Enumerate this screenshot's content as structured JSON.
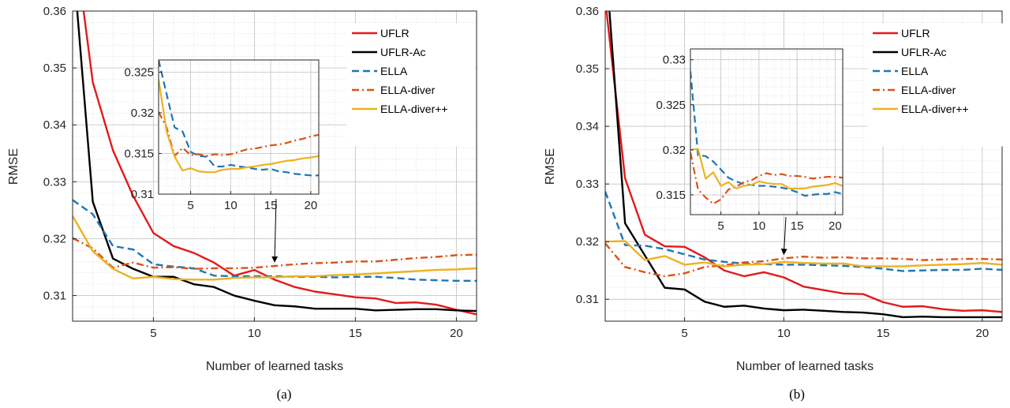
{
  "chart_data": [
    {
      "type": "line",
      "caption": "(a)",
      "xlabel": "Number of learned tasks",
      "ylabel": "RMSE",
      "xlim": [
        1,
        21
      ],
      "ylim": [
        0.3055,
        0.36
      ],
      "xticks": [
        5,
        10,
        15,
        20
      ],
      "yticks": [
        0.31,
        0.32,
        0.33,
        0.34,
        0.35,
        0.36
      ],
      "ytick_labels": [
        "0.31",
        "0.32",
        "0.33",
        "0.34",
        "0.35",
        "0.36"
      ],
      "grid": true,
      "legend_position": "top-right",
      "x": [
        1,
        2,
        3,
        4,
        5,
        6,
        7,
        8,
        9,
        10,
        11,
        12,
        13,
        14,
        15,
        16,
        17,
        18,
        19,
        20,
        21
      ],
      "series": [
        {
          "name": "UFLR",
          "color": "#e31a1c",
          "style": "solid",
          "values": [
            0.375,
            0.3475,
            0.3355,
            0.3275,
            0.321,
            0.3187,
            0.3175,
            0.3158,
            0.3135,
            0.3145,
            0.3128,
            0.3115,
            0.3107,
            0.3102,
            0.3097,
            0.3095,
            0.3087,
            0.3088,
            0.3084,
            0.3075,
            0.3067
          ]
        },
        {
          "name": "UFLR-Ac",
          "color": "#000000",
          "style": "solid",
          "values": [
            0.37,
            0.3265,
            0.3165,
            0.3147,
            0.3133,
            0.3133,
            0.312,
            0.3115,
            0.31,
            0.3091,
            0.3083,
            0.3081,
            0.3077,
            0.3077,
            0.3077,
            0.3074,
            0.3075,
            0.3076,
            0.3076,
            0.3074,
            0.3073
          ]
        },
        {
          "name": "ELLA",
          "color": "#1f77b4",
          "style": "dashed",
          "values": [
            0.3268,
            0.3243,
            0.3187,
            0.3181,
            0.3155,
            0.3151,
            0.3148,
            0.3135,
            0.3134,
            0.3134,
            0.3134,
            0.3133,
            0.3133,
            0.3132,
            0.3133,
            0.3133,
            0.3131,
            0.3128,
            0.3127,
            0.3126,
            0.3126
          ]
        },
        {
          "name": "ELLA-diver",
          "color": "#d95319",
          "style": "dashdot",
          "values": [
            0.3201,
            0.3183,
            0.3149,
            0.3158,
            0.3149,
            0.315,
            0.3147,
            0.3148,
            0.3148,
            0.3149,
            0.3152,
            0.3155,
            0.3157,
            0.3158,
            0.316,
            0.316,
            0.3163,
            0.3166,
            0.3168,
            0.3171,
            0.3172
          ]
        },
        {
          "name": "ELLA-diver++",
          "color": "#edb120",
          "style": "solid",
          "values": [
            0.324,
            0.3178,
            0.3147,
            0.313,
            0.3133,
            0.3129,
            0.3128,
            0.3128,
            0.3131,
            0.3132,
            0.3132,
            0.3134,
            0.3134,
            0.3136,
            0.3137,
            0.3139,
            0.3141,
            0.3143,
            0.3145,
            0.3146,
            0.3148
          ]
        }
      ],
      "inset": {
        "xlim": [
          1,
          21
        ],
        "ylim": [
          0.31,
          0.3265
        ],
        "xticks": [
          5,
          10,
          15,
          20
        ],
        "yticks": [
          0.31,
          0.315,
          0.32,
          0.325
        ],
        "ytick_labels": [
          "0.31",
          "0.315",
          "0.32",
          "0.325"
        ],
        "annotation_arrow_to_x": 11,
        "series": [
          {
            "name": "ELLA",
            "values": [
              0.3265,
              0.3223,
              0.3182,
              0.3177,
              0.3152,
              0.3147,
              0.3146,
              0.3134,
              0.3134,
              0.3136,
              0.3134,
              0.3133,
              0.3131,
              0.313,
              0.3131,
              0.3128,
              0.3127,
              0.3125,
              0.3124,
              0.3123,
              0.3123
            ]
          },
          {
            "name": "ELLA-diver",
            "values": [
              0.3201,
              0.3182,
              0.3147,
              0.3157,
              0.3148,
              0.3149,
              0.3147,
              0.3149,
              0.3148,
              0.3149,
              0.3152,
              0.3155,
              0.3156,
              0.3158,
              0.316,
              0.3161,
              0.3163,
              0.3166,
              0.3168,
              0.3171,
              0.3173
            ]
          },
          {
            "name": "ELLA-diver++",
            "values": [
              0.3241,
              0.3177,
              0.3146,
              0.3129,
              0.3132,
              0.3128,
              0.3127,
              0.3127,
              0.313,
              0.3131,
              0.3131,
              0.3133,
              0.3134,
              0.3136,
              0.3137,
              0.3139,
              0.3141,
              0.3142,
              0.3144,
              0.3145,
              0.3147
            ]
          }
        ]
      }
    },
    {
      "type": "line",
      "caption": "(b)",
      "xlabel": "Number of learned tasks",
      "ylabel": "RMSE",
      "xlim": [
        1,
        21
      ],
      "ylim": [
        0.3062,
        0.36
      ],
      "xticks": [
        5,
        10,
        15,
        20
      ],
      "yticks": [
        0.31,
        0.32,
        0.33,
        0.34,
        0.35,
        0.36
      ],
      "ytick_labels": [
        "0.31",
        "0.32",
        "0.33",
        "0.34",
        "0.35",
        "0.36"
      ],
      "grid": true,
      "legend_position": "top-right",
      "x": [
        1,
        2,
        3,
        4,
        5,
        6,
        7,
        8,
        9,
        10,
        11,
        12,
        13,
        14,
        15,
        16,
        17,
        18,
        19,
        20,
        21
      ],
      "series": [
        {
          "name": "UFLR",
          "color": "#e31a1c",
          "style": "solid",
          "values": [
            0.362,
            0.331,
            0.3212,
            0.3192,
            0.3191,
            0.3173,
            0.315,
            0.314,
            0.3147,
            0.3138,
            0.3122,
            0.3116,
            0.311,
            0.3109,
            0.3095,
            0.3087,
            0.3088,
            0.3083,
            0.308,
            0.3081,
            0.3078
          ]
        },
        {
          "name": "UFLR-Ac",
          "color": "#000000",
          "style": "solid",
          "values": [
            0.37,
            0.3232,
            0.3176,
            0.312,
            0.3117,
            0.3096,
            0.3087,
            0.3089,
            0.3084,
            0.3081,
            0.3082,
            0.308,
            0.3078,
            0.3077,
            0.3074,
            0.3069,
            0.307,
            0.3069,
            0.3069,
            0.3069,
            0.3069
          ]
        },
        {
          "name": "ELLA",
          "color": "#1f77b4",
          "style": "dashed",
          "values": [
            0.3287,
            0.3194,
            0.3193,
            0.3187,
            0.3178,
            0.3169,
            0.3165,
            0.3162,
            0.3161,
            0.316,
            0.316,
            0.3159,
            0.3158,
            0.3156,
            0.3153,
            0.3149,
            0.315,
            0.3151,
            0.3151,
            0.3153,
            0.3151
          ]
        },
        {
          "name": "ELLA-diver",
          "color": "#d95319",
          "style": "dashdot",
          "values": [
            0.3197,
            0.3156,
            0.3147,
            0.314,
            0.3145,
            0.3156,
            0.3159,
            0.3164,
            0.3166,
            0.3171,
            0.3174,
            0.3172,
            0.3173,
            0.3171,
            0.3171,
            0.317,
            0.3168,
            0.3169,
            0.317,
            0.317,
            0.3169
          ]
        },
        {
          "name": "ELLA-diver++",
          "color": "#edb120",
          "style": "solid",
          "values": [
            0.32,
            0.3201,
            0.3168,
            0.3175,
            0.316,
            0.3164,
            0.3157,
            0.316,
            0.3161,
            0.3165,
            0.3163,
            0.3162,
            0.3162,
            0.3157,
            0.3157,
            0.3157,
            0.3159,
            0.316,
            0.3161,
            0.3163,
            0.316
          ]
        }
      ],
      "inset": {
        "xlim": [
          1,
          21
        ],
        "ylim": [
          0.3128,
          0.3312
        ],
        "xticks": [
          5,
          10,
          15,
          20
        ],
        "yticks": [
          0.315,
          0.32,
          0.325,
          0.33
        ],
        "ytick_labels": [
          "0.315",
          "0.32",
          "0.325",
          "0.33"
        ],
        "annotation_arrow_to_x": 10,
        "series": [
          {
            "name": "ELLA",
            "values": [
              0.3287,
              0.3194,
              0.3193,
              0.3187,
              0.3178,
              0.3169,
              0.3165,
              0.3162,
              0.3161,
              0.316,
              0.316,
              0.3159,
              0.3158,
              0.3156,
              0.3153,
              0.3149,
              0.315,
              0.3151,
              0.3151,
              0.3153,
              0.3151
            ]
          },
          {
            "name": "ELLA-diver",
            "values": [
              0.3197,
              0.3156,
              0.3147,
              0.314,
              0.3145,
              0.3156,
              0.3159,
              0.3164,
              0.3166,
              0.3171,
              0.3174,
              0.3172,
              0.3173,
              0.3171,
              0.3171,
              0.317,
              0.3168,
              0.3169,
              0.317,
              0.317,
              0.3169
            ]
          },
          {
            "name": "ELLA-diver++",
            "values": [
              0.32,
              0.3201,
              0.3168,
              0.3175,
              0.316,
              0.3164,
              0.3157,
              0.316,
              0.3161,
              0.3165,
              0.3163,
              0.3162,
              0.3162,
              0.3157,
              0.3157,
              0.3157,
              0.3159,
              0.316,
              0.3161,
              0.3163,
              0.316
            ]
          }
        ]
      }
    }
  ]
}
